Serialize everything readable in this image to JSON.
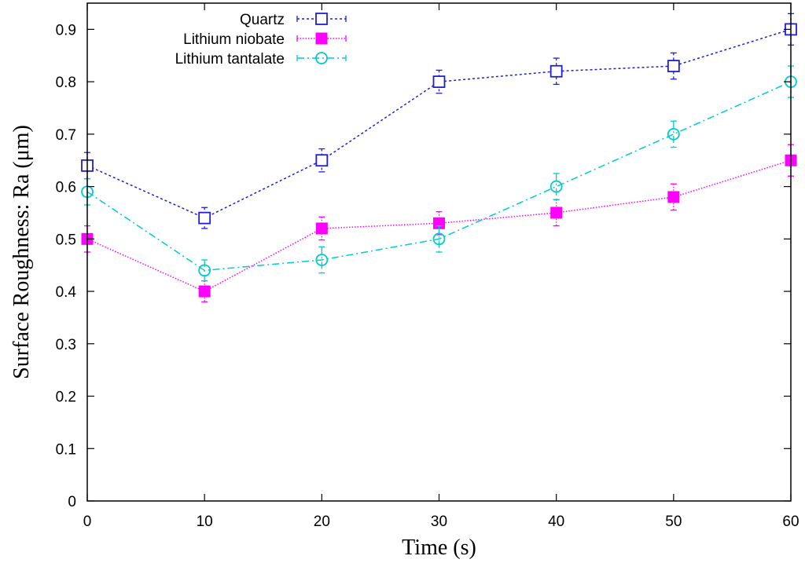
{
  "chart_data": {
    "type": "line",
    "title": "",
    "xlabel": "Time (s)",
    "ylabel": "Surface Roughness: Ra (μm)",
    "x": [
      0,
      10,
      20,
      30,
      40,
      50,
      60
    ],
    "xlim": [
      0,
      60
    ],
    "ylim": [
      0,
      0.95
    ],
    "xticks": [
      0,
      10,
      20,
      30,
      40,
      50,
      60
    ],
    "xtick_labels": [
      "0",
      "10",
      "20",
      "30",
      "40",
      "50",
      "60"
    ],
    "yticks": [
      0,
      0.1,
      0.2,
      0.3,
      0.4,
      0.5,
      0.6,
      0.7,
      0.8,
      0.9
    ],
    "ytick_labels": [
      "0",
      "0.1",
      "0.2",
      "0.3",
      "0.4",
      "0.5",
      "0.6",
      "0.7",
      "0.8",
      "0.9"
    ],
    "grid": false,
    "legend_position": "top-left",
    "series": [
      {
        "name": "Quartz",
        "color": "#1f1fd6",
        "marker": "open-square",
        "dash": "dotted",
        "values": [
          0.64,
          0.54,
          0.65,
          0.8,
          0.82,
          0.83,
          0.9
        ],
        "errors": [
          0.025,
          0.02,
          0.022,
          0.022,
          0.025,
          0.025,
          0.03
        ]
      },
      {
        "name": "Lithium niobate",
        "color": "#ff00ff",
        "marker": "filled-square",
        "dash": "fine-dotted",
        "values": [
          0.5,
          0.4,
          0.52,
          0.53,
          0.55,
          0.58,
          0.65
        ],
        "errors": [
          0.025,
          0.02,
          0.022,
          0.022,
          0.025,
          0.025,
          0.03
        ]
      },
      {
        "name": "Lithium tantalate",
        "color": "#00cccc",
        "marker": "open-circle",
        "dash": "dash-dot",
        "values": [
          0.59,
          0.44,
          0.46,
          0.5,
          0.6,
          0.7,
          0.8
        ],
        "errors": [
          0.025,
          0.02,
          0.025,
          0.025,
          0.025,
          0.025,
          0.03
        ]
      }
    ]
  }
}
